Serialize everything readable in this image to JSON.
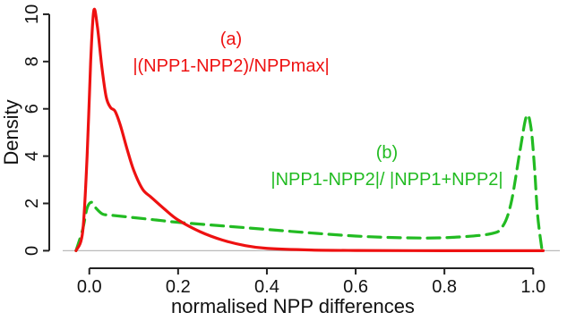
{
  "chart_data": {
    "type": "line",
    "title": "",
    "xlabel": "normalised NPP differences",
    "ylabel": "Density",
    "xlim": [
      -0.06,
      1.06
    ],
    "ylim": [
      -0.25,
      10.3
    ],
    "x_ticks": [
      0.0,
      0.2,
      0.4,
      0.6,
      0.8,
      1.0
    ],
    "x_tick_labels": [
      "0.0",
      "0.2",
      "0.4",
      "0.6",
      "0.8",
      "1.0"
    ],
    "y_ticks": [
      0,
      2,
      4,
      6,
      8,
      10
    ],
    "y_tick_labels": [
      "0",
      "2",
      "4",
      "6",
      "8",
      "10"
    ],
    "baseline": 0,
    "grid": false,
    "series": [
      {
        "label": "(a)",
        "formula": "|(NPP1-NPP2)/NPPmax|",
        "color": "#ee1111",
        "style": "solid",
        "points": [
          [
            -0.03,
            0.0
          ],
          [
            -0.015,
            0.8
          ],
          [
            -0.005,
            4.0
          ],
          [
            0.003,
            8.0
          ],
          [
            0.01,
            10.15
          ],
          [
            0.018,
            9.5
          ],
          [
            0.028,
            7.8
          ],
          [
            0.038,
            6.5
          ],
          [
            0.048,
            6.05
          ],
          [
            0.058,
            5.9
          ],
          [
            0.07,
            5.3
          ],
          [
            0.085,
            4.3
          ],
          [
            0.1,
            3.4
          ],
          [
            0.12,
            2.6
          ],
          [
            0.14,
            2.25
          ],
          [
            0.17,
            1.75
          ],
          [
            0.2,
            1.3
          ],
          [
            0.25,
            0.8
          ],
          [
            0.3,
            0.45
          ],
          [
            0.35,
            0.22
          ],
          [
            0.4,
            0.1
          ],
          [
            0.5,
            0.03
          ],
          [
            0.6,
            0.01
          ],
          [
            0.8,
            0.0
          ],
          [
            1.0,
            0.0
          ],
          [
            1.02,
            0.0
          ]
        ]
      },
      {
        "label": "(b)",
        "formula": "|NPP1-NPP2|/ |NPP1+NPP2|",
        "color": "#22bb22",
        "style": "dashed",
        "points": [
          [
            -0.03,
            0.0
          ],
          [
            -0.015,
            0.9
          ],
          [
            -0.005,
            1.8
          ],
          [
            0.005,
            2.05
          ],
          [
            0.015,
            1.8
          ],
          [
            0.03,
            1.55
          ],
          [
            0.05,
            1.5
          ],
          [
            0.1,
            1.4
          ],
          [
            0.15,
            1.3
          ],
          [
            0.2,
            1.2
          ],
          [
            0.3,
            1.05
          ],
          [
            0.4,
            0.9
          ],
          [
            0.5,
            0.75
          ],
          [
            0.6,
            0.62
          ],
          [
            0.7,
            0.55
          ],
          [
            0.8,
            0.55
          ],
          [
            0.9,
            0.7
          ],
          [
            0.93,
            1.0
          ],
          [
            0.95,
            2.0
          ],
          [
            0.97,
            4.2
          ],
          [
            0.985,
            5.7
          ],
          [
            0.995,
            5.2
          ],
          [
            1.003,
            3.5
          ],
          [
            1.01,
            1.5
          ],
          [
            1.02,
            0.0
          ]
        ]
      }
    ]
  }
}
